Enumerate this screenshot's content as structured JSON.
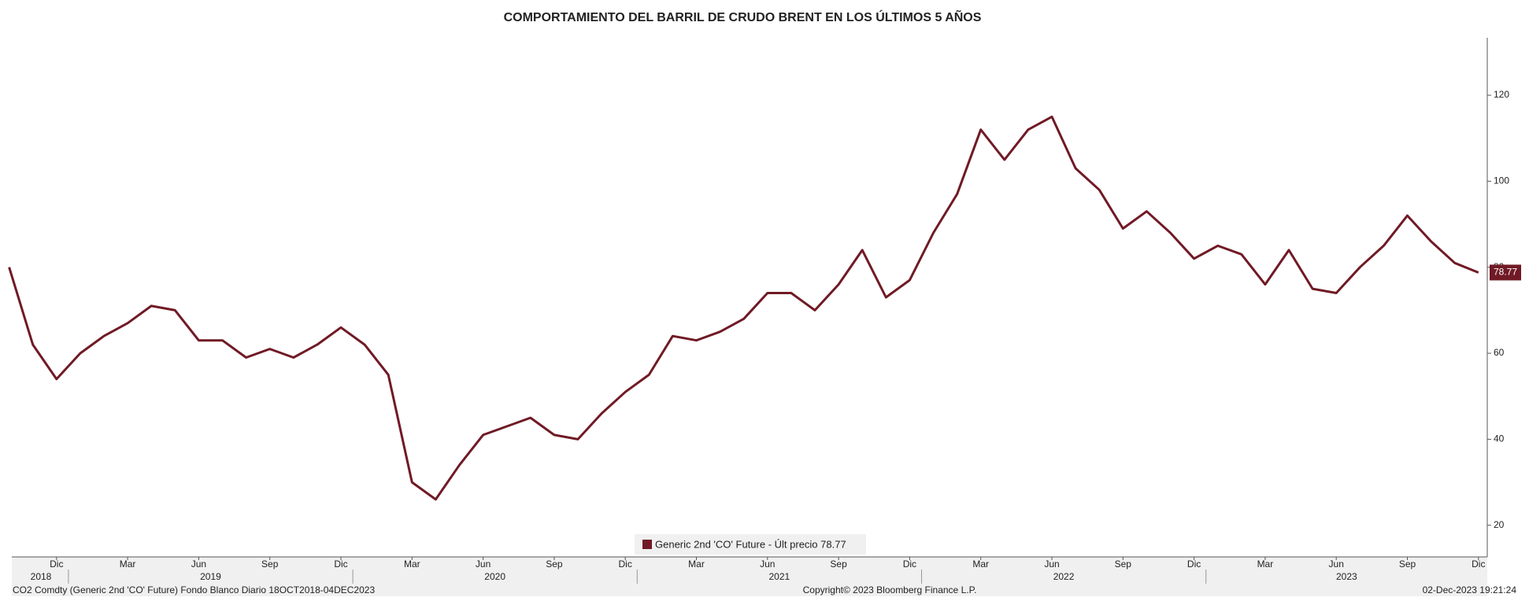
{
  "chart_data": {
    "type": "line",
    "title": "COMPORTAMIENTO DEL BARRIL DE CRUDO BRENT EN LOS ÚLTIMOS 5 AÑOS",
    "x": [
      "2018-10",
      "2018-11",
      "2018-12",
      "2019-01",
      "2019-02",
      "2019-03",
      "2019-04",
      "2019-05",
      "2019-06",
      "2019-07",
      "2019-08",
      "2019-09",
      "2019-10",
      "2019-11",
      "2019-12",
      "2020-01",
      "2020-02",
      "2020-03",
      "2020-04",
      "2020-05",
      "2020-06",
      "2020-07",
      "2020-08",
      "2020-09",
      "2020-10",
      "2020-11",
      "2020-12",
      "2021-01",
      "2021-02",
      "2021-03",
      "2021-04",
      "2021-05",
      "2021-06",
      "2021-07",
      "2021-08",
      "2021-09",
      "2021-10",
      "2021-11",
      "2021-12",
      "2022-01",
      "2022-02",
      "2022-03",
      "2022-04",
      "2022-05",
      "2022-06",
      "2022-07",
      "2022-08",
      "2022-09",
      "2022-10",
      "2022-11",
      "2022-12",
      "2023-01",
      "2023-02",
      "2023-03",
      "2023-04",
      "2023-05",
      "2023-06",
      "2023-07",
      "2023-08",
      "2023-09",
      "2023-10",
      "2023-11",
      "2023-12"
    ],
    "series": [
      {
        "name": "Generic 2nd 'CO' Future - Últ precio 78.77",
        "color": "#701a25",
        "values": [
          80,
          62,
          54,
          60,
          64,
          67,
          71,
          70,
          63,
          63,
          59,
          61,
          59,
          62,
          66,
          62,
          55,
          30,
          26,
          34,
          41,
          43,
          45,
          41,
          40,
          46,
          51,
          55,
          64,
          63,
          65,
          68,
          74,
          74,
          70,
          76,
          84,
          73,
          77,
          88,
          97,
          112,
          105,
          112,
          115,
          103,
          98,
          89,
          93,
          88,
          82,
          85,
          83,
          76,
          84,
          75,
          74,
          80,
          85,
          92,
          86,
          81,
          78.77
        ]
      }
    ],
    "ylim": [
      13,
      133
    ],
    "yticks": [
      20,
      40,
      60,
      80,
      100,
      120
    ],
    "xticks": [
      {
        "value": "2018-12",
        "label": "Dic"
      },
      {
        "value": "2019-03",
        "label": "Mar"
      },
      {
        "value": "2019-06",
        "label": "Jun"
      },
      {
        "value": "2019-09",
        "label": "Sep"
      },
      {
        "value": "2019-12",
        "label": "Dic"
      },
      {
        "value": "2020-03",
        "label": "Mar"
      },
      {
        "value": "2020-06",
        "label": "Jun"
      },
      {
        "value": "2020-09",
        "label": "Sep"
      },
      {
        "value": "2020-12",
        "label": "Dic"
      },
      {
        "value": "2021-03",
        "label": "Mar"
      },
      {
        "value": "2021-06",
        "label": "Jun"
      },
      {
        "value": "2021-09",
        "label": "Sep"
      },
      {
        "value": "2021-12",
        "label": "Dic"
      },
      {
        "value": "2022-03",
        "label": "Mar"
      },
      {
        "value": "2022-06",
        "label": "Jun"
      },
      {
        "value": "2022-09",
        "label": "Sep"
      },
      {
        "value": "2022-12",
        "label": "Dic"
      },
      {
        "value": "2023-03",
        "label": "Mar"
      },
      {
        "value": "2023-06",
        "label": "Jun"
      },
      {
        "value": "2023-09",
        "label": "Sep"
      },
      {
        "value": "2023-12",
        "label": "Dic"
      }
    ],
    "year_labels": [
      "2018",
      "2019",
      "2020",
      "2021",
      "2022",
      "2023"
    ],
    "footer_left": "CO2 Comdty (Generic 2nd 'CO' Future) Fondo Blanco  Diario 18OCT2018-04DEC2023",
    "footer_center": "Copyright© 2023 Bloomberg Finance L.P.",
    "footer_right": "02-Dec-2023 19:21:24"
  }
}
